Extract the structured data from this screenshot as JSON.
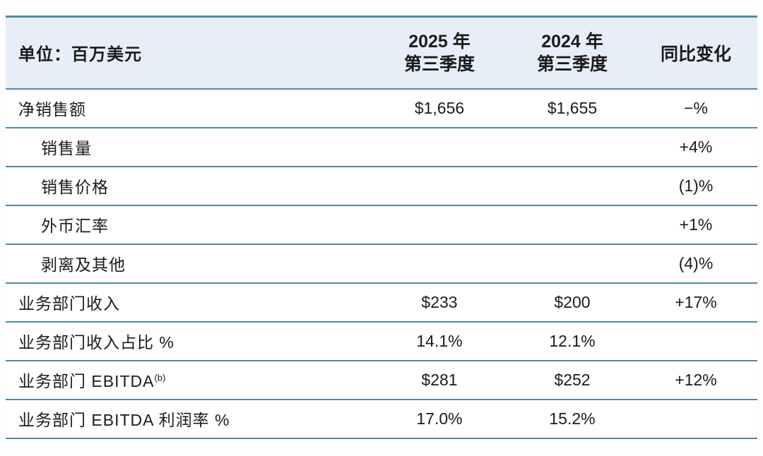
{
  "colors": {
    "header_bg": "#e6eff7",
    "border": "#4b8ca7",
    "text": "#1b1b1b",
    "page_bg": "#fdfdfd"
  },
  "table": {
    "header": {
      "unit_label": "单位：百万美元",
      "col_2025_line1": "2025 年",
      "col_2025_line2": "第三季度",
      "col_2024_line1": "2024 年",
      "col_2024_line2": "第三季度",
      "col_yoy": "同比变化"
    },
    "rows": [
      {
        "label": "净销售额",
        "indent": false,
        "q3_2025": "$1,656",
        "q3_2024": "$1,655",
        "yoy": "−%"
      },
      {
        "label": "销售量",
        "indent": true,
        "q3_2025": "",
        "q3_2024": "",
        "yoy": "+4%"
      },
      {
        "label": "销售价格",
        "indent": true,
        "q3_2025": "",
        "q3_2024": "",
        "yoy": "(1)%"
      },
      {
        "label": "外币汇率",
        "indent": true,
        "q3_2025": "",
        "q3_2024": "",
        "yoy": "+1%"
      },
      {
        "label": "剥离及其他",
        "indent": true,
        "q3_2025": "",
        "q3_2024": "",
        "yoy": "(4)%"
      },
      {
        "label": "业务部门收入",
        "indent": false,
        "q3_2025": "$233",
        "q3_2024": "$200",
        "yoy": "+17%"
      },
      {
        "label": "业务部门收入占比 %",
        "indent": false,
        "q3_2025": "14.1%",
        "q3_2024": "12.1%",
        "yoy": ""
      },
      {
        "label": "业务部门 EBITDA",
        "label_sup": "(b)",
        "indent": false,
        "q3_2025": "$281",
        "q3_2024": "$252",
        "yoy": "+12%"
      },
      {
        "label": "业务部门 EBITDA 利润率 %",
        "indent": false,
        "q3_2025": "17.0%",
        "q3_2024": "15.2%",
        "yoy": ""
      }
    ]
  }
}
